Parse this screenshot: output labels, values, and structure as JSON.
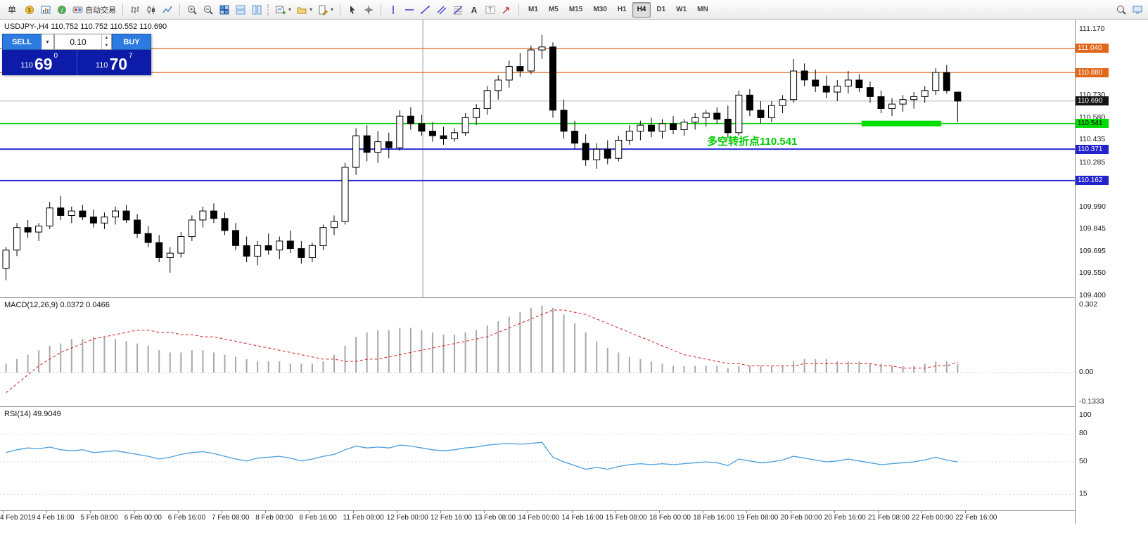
{
  "toolbar": {
    "order_label": "单",
    "autotrading_label": "自动交易",
    "icons_left": [
      "new-order-icon",
      "chart-window-icon",
      "market-watch-icon"
    ],
    "icons_chart_types": [
      "bar-chart-icon",
      "candlestick-chart-icon",
      "line-chart-icon"
    ],
    "icons_zoom": [
      "zoom-in-icon",
      "zoom-out-icon",
      "tile-windows-icon",
      "arrange-horizontal-icon",
      "arrange-vertical-icon"
    ],
    "icons_dropdown": [
      "new-chart-icon",
      "profiles-icon",
      "templates-icon"
    ],
    "icons_cursor": [
      "cursor-icon",
      "crosshair-icon"
    ],
    "icons_draw": [
      "vertical-line-icon",
      "horizontal-line-icon",
      "trendline-icon",
      "equidistant-channel-icon",
      "fibonacci-icon",
      "text-icon",
      "text-label-icon",
      "arrows-icon"
    ],
    "icons_right": [
      "search-icon",
      "workspace-icon"
    ],
    "timeframes": [
      "M1",
      "M5",
      "M15",
      "M30",
      "H1",
      "H4",
      "D1",
      "W1",
      "MN"
    ],
    "active_timeframe": "H4"
  },
  "trade_panel": {
    "sell_label": "SELL",
    "buy_label": "BUY",
    "volume": "0.10",
    "sell_small": "110",
    "sell_big": "69",
    "sell_sup": "0",
    "buy_small": "110",
    "buy_big": "70",
    "buy_sup": "7"
  },
  "price_pane": {
    "ohlc_label": "USDJPY-,H4 110.752 110.752 110.552 110.690",
    "annotation": "多空转折点110.541"
  },
  "macd_pane": {
    "label": "MACD(12,26,9) 0.0372 0.0466"
  },
  "rsi_pane": {
    "label": "RSI(14) 49.9049"
  },
  "chart_data": {
    "type": "candlestick",
    "symbol": "USDJPY-",
    "timeframe": "H4",
    "current_bid": "110.690",
    "colors": {
      "candle_up_fill": "#ffffff",
      "candle_down_fill": "#000000",
      "candle_stroke": "#000000",
      "orange_line": "#e2661a",
      "green_line": "#00cc00",
      "blue_line": "#2a2ad4",
      "bid_line": "#b0b0b0",
      "macd_bar": "#a8a8a8",
      "macd_signal": "#d02020",
      "rsi_line": "#4a9ede",
      "highlight_green": "#00dd00",
      "annotation_green": "#00cc00"
    },
    "plot": {
      "price_top": 111.231,
      "price_bottom": 109.386
    },
    "hlines": [
      {
        "price": 111.04,
        "color": "#e2661a",
        "width": 1.2
      },
      {
        "price": 110.88,
        "color": "#e2661a",
        "width": 1.2
      },
      {
        "price": 110.69,
        "color": "#b0b0b0",
        "width": 1
      },
      {
        "price": 110.541,
        "color": "#00cc00",
        "width": 1.6
      },
      {
        "price": 110.371,
        "color": "#2a2ad4",
        "width": 2
      },
      {
        "price": 110.162,
        "color": "#2a2ad4",
        "width": 2
      }
    ],
    "highlight": {
      "price": 110.541,
      "from_index": 78.5,
      "to_index": 85.8,
      "color": "#00dd00",
      "thickness": 8
    },
    "vline_index": 38.4,
    "price_axis": {
      "ticks": [
        {
          "label": "111.170",
          "value": 111.17
        },
        {
          "label": "110.730",
          "value": 110.73
        },
        {
          "label": "110.580",
          "value": 110.58
        },
        {
          "label": "110.435",
          "value": 110.435
        },
        {
          "label": "110.285",
          "value": 110.285
        },
        {
          "label": "109.990",
          "value": 109.99
        },
        {
          "label": "109.845",
          "value": 109.845
        },
        {
          "label": "109.695",
          "value": 109.695
        },
        {
          "label": "109.550",
          "value": 109.55
        },
        {
          "label": "109.400",
          "value": 109.4
        }
      ],
      "badges": [
        {
          "label": "111.040",
          "value": 111.04,
          "bg": "#e2661a",
          "fg": "#ffffff"
        },
        {
          "label": "110.880",
          "value": 110.88,
          "bg": "#e2661a",
          "fg": "#ffffff"
        },
        {
          "label": "110.690",
          "value": 110.69,
          "bg": "#141414",
          "fg": "#ffffff"
        },
        {
          "label": "110.541",
          "value": 110.541,
          "bg": "#00dd00",
          "fg": "#000000"
        },
        {
          "label": "110.371",
          "value": 110.371,
          "bg": "#2323cc",
          "fg": "#ffffff"
        },
        {
          "label": "110.162",
          "value": 110.162,
          "bg": "#2323cc",
          "fg": "#ffffff"
        }
      ]
    },
    "candles": [
      [
        109.58,
        109.72,
        109.5,
        109.7
      ],
      [
        109.7,
        109.88,
        109.66,
        109.85
      ],
      [
        109.85,
        109.9,
        109.78,
        109.82
      ],
      [
        109.82,
        109.88,
        109.76,
        109.86
      ],
      [
        109.86,
        110.02,
        109.84,
        109.98
      ],
      [
        109.98,
        110.06,
        109.9,
        109.93
      ],
      [
        109.93,
        109.99,
        109.88,
        109.96
      ],
      [
        109.96,
        110.0,
        109.9,
        109.92
      ],
      [
        109.92,
        109.97,
        109.85,
        109.88
      ],
      [
        109.88,
        109.95,
        109.84,
        109.92
      ],
      [
        109.92,
        109.99,
        109.87,
        109.96
      ],
      [
        109.96,
        110.0,
        109.88,
        109.9
      ],
      [
        109.9,
        109.94,
        109.78,
        109.81
      ],
      [
        109.81,
        109.86,
        109.72,
        109.75
      ],
      [
        109.75,
        109.8,
        109.62,
        109.65
      ],
      [
        109.65,
        109.72,
        109.55,
        109.68
      ],
      [
        109.68,
        109.82,
        109.65,
        109.79
      ],
      [
        109.79,
        109.93,
        109.76,
        109.9
      ],
      [
        109.9,
        109.99,
        109.85,
        109.96
      ],
      [
        109.96,
        110.01,
        109.88,
        109.91
      ],
      [
        109.91,
        109.95,
        109.8,
        109.83
      ],
      [
        109.83,
        109.88,
        109.7,
        109.73
      ],
      [
        109.73,
        109.79,
        109.62,
        109.66
      ],
      [
        109.66,
        109.76,
        109.6,
        109.73
      ],
      [
        109.73,
        109.81,
        109.67,
        109.7
      ],
      [
        109.7,
        109.79,
        109.64,
        109.76
      ],
      [
        109.76,
        109.83,
        109.68,
        109.71
      ],
      [
        109.71,
        109.76,
        109.61,
        109.65
      ],
      [
        109.65,
        109.75,
        109.62,
        109.73
      ],
      [
        109.73,
        109.87,
        109.7,
        109.85
      ],
      [
        109.85,
        109.93,
        109.8,
        109.89
      ],
      [
        109.89,
        110.28,
        109.87,
        110.25
      ],
      [
        110.25,
        110.51,
        110.2,
        110.46
      ],
      [
        110.46,
        110.53,
        110.29,
        110.35
      ],
      [
        110.35,
        110.49,
        110.28,
        110.42
      ],
      [
        110.42,
        110.48,
        110.31,
        110.38
      ],
      [
        110.38,
        110.63,
        110.36,
        110.59
      ],
      [
        110.59,
        110.65,
        110.5,
        110.54
      ],
      [
        110.54,
        110.6,
        110.46,
        110.49
      ],
      [
        110.49,
        110.55,
        110.42,
        110.46
      ],
      [
        110.46,
        110.52,
        110.4,
        110.44
      ],
      [
        110.44,
        110.51,
        110.42,
        110.48
      ],
      [
        110.48,
        110.61,
        110.46,
        110.58
      ],
      [
        110.58,
        110.67,
        110.53,
        110.64
      ],
      [
        110.64,
        110.79,
        110.6,
        110.76
      ],
      [
        110.76,
        110.86,
        110.7,
        110.83
      ],
      [
        110.83,
        110.96,
        110.78,
        110.92
      ],
      [
        110.92,
        111.01,
        110.85,
        110.89
      ],
      [
        110.89,
        111.06,
        110.87,
        111.03
      ],
      [
        111.03,
        111.13,
        110.97,
        111.05
      ],
      [
        111.05,
        111.08,
        110.58,
        110.63
      ],
      [
        110.63,
        110.7,
        110.44,
        110.49
      ],
      [
        110.49,
        110.56,
        110.37,
        110.41
      ],
      [
        110.41,
        110.47,
        110.26,
        110.3
      ],
      [
        110.3,
        110.41,
        110.24,
        110.37
      ],
      [
        110.37,
        110.43,
        110.27,
        110.31
      ],
      [
        110.31,
        110.46,
        110.29,
        110.43
      ],
      [
        110.43,
        110.53,
        110.4,
        110.49
      ],
      [
        110.49,
        110.56,
        110.43,
        110.53
      ],
      [
        110.53,
        110.58,
        110.45,
        110.49
      ],
      [
        110.49,
        110.57,
        110.44,
        110.54
      ],
      [
        110.54,
        110.59,
        110.47,
        110.5
      ],
      [
        110.5,
        110.57,
        110.46,
        110.55
      ],
      [
        110.55,
        110.61,
        110.5,
        110.58
      ],
      [
        110.58,
        110.63,
        110.52,
        110.61
      ],
      [
        110.61,
        110.65,
        110.54,
        110.57
      ],
      [
        110.57,
        110.66,
        110.45,
        110.48
      ],
      [
        110.48,
        110.76,
        110.46,
        110.73
      ],
      [
        110.73,
        110.77,
        110.59,
        110.63
      ],
      [
        110.63,
        110.69,
        110.54,
        110.58
      ],
      [
        110.58,
        110.69,
        110.55,
        110.66
      ],
      [
        110.66,
        110.73,
        110.61,
        110.7
      ],
      [
        110.7,
        110.97,
        110.68,
        110.89
      ],
      [
        110.89,
        110.94,
        110.79,
        110.83
      ],
      [
        110.83,
        110.9,
        110.75,
        110.79
      ],
      [
        110.79,
        110.86,
        110.71,
        110.75
      ],
      [
        110.75,
        110.83,
        110.69,
        110.79
      ],
      [
        110.79,
        110.89,
        110.74,
        110.83
      ],
      [
        110.83,
        110.87,
        110.75,
        110.78
      ],
      [
        110.78,
        110.82,
        110.68,
        110.72
      ],
      [
        110.72,
        110.76,
        110.61,
        110.64
      ],
      [
        110.64,
        110.71,
        110.59,
        110.67
      ],
      [
        110.67,
        110.73,
        110.62,
        110.7
      ],
      [
        110.7,
        110.75,
        110.64,
        110.72
      ],
      [
        110.72,
        110.79,
        110.68,
        110.76
      ],
      [
        110.76,
        110.91,
        110.73,
        110.88
      ],
      [
        110.88,
        110.93,
        110.74,
        110.76
      ],
      [
        110.75,
        110.75,
        110.55,
        110.69
      ]
    ],
    "macd": {
      "histogram": [
        0.04,
        0.06,
        0.08,
        0.1,
        0.12,
        0.13,
        0.15,
        0.15,
        0.16,
        0.16,
        0.15,
        0.14,
        0.13,
        0.12,
        0.1,
        0.09,
        0.09,
        0.1,
        0.1,
        0.09,
        0.08,
        0.07,
        0.06,
        0.05,
        0.05,
        0.05,
        0.04,
        0.04,
        0.04,
        0.05,
        0.08,
        0.12,
        0.16,
        0.18,
        0.19,
        0.19,
        0.2,
        0.2,
        0.19,
        0.18,
        0.17,
        0.17,
        0.18,
        0.19,
        0.21,
        0.23,
        0.25,
        0.27,
        0.29,
        0.3,
        0.29,
        0.26,
        0.22,
        0.18,
        0.14,
        0.11,
        0.09,
        0.07,
        0.06,
        0.05,
        0.04,
        0.03,
        0.03,
        0.03,
        0.03,
        0.03,
        0.02,
        0.03,
        0.03,
        0.03,
        0.03,
        0.03,
        0.05,
        0.06,
        0.06,
        0.06,
        0.05,
        0.05,
        0.05,
        0.04,
        0.04,
        0.03,
        0.03,
        0.03,
        0.04,
        0.05,
        0.05,
        0.037
      ],
      "signal": [
        -0.09,
        -0.05,
        -0.01,
        0.03,
        0.06,
        0.09,
        0.11,
        0.13,
        0.15,
        0.16,
        0.17,
        0.18,
        0.19,
        0.19,
        0.18,
        0.18,
        0.17,
        0.17,
        0.16,
        0.16,
        0.15,
        0.14,
        0.13,
        0.12,
        0.11,
        0.1,
        0.09,
        0.08,
        0.07,
        0.06,
        0.06,
        0.05,
        0.05,
        0.06,
        0.06,
        0.07,
        0.08,
        0.09,
        0.1,
        0.11,
        0.12,
        0.13,
        0.14,
        0.15,
        0.16,
        0.18,
        0.2,
        0.22,
        0.24,
        0.26,
        0.28,
        0.28,
        0.27,
        0.26,
        0.24,
        0.22,
        0.2,
        0.18,
        0.16,
        0.14,
        0.12,
        0.1,
        0.08,
        0.07,
        0.06,
        0.05,
        0.04,
        0.04,
        0.03,
        0.03,
        0.03,
        0.03,
        0.03,
        0.04,
        0.04,
        0.04,
        0.04,
        0.04,
        0.04,
        0.04,
        0.03,
        0.03,
        0.02,
        0.02,
        0.02,
        0.03,
        0.03,
        0.047
      ],
      "ticks": [
        {
          "label": "0.302",
          "value": 0.302
        },
        {
          "label": "0.00",
          "value": 0
        },
        {
          "label": "-0.1333",
          "value": -0.1333
        }
      ]
    },
    "rsi": {
      "values": [
        60,
        63,
        65,
        64,
        66,
        63,
        62,
        63,
        60,
        61,
        62,
        60,
        58,
        56,
        53,
        55,
        58,
        60,
        61,
        59,
        56,
        53,
        51,
        54,
        55,
        56,
        54,
        51,
        53,
        56,
        58,
        63,
        67,
        65,
        66,
        65,
        68,
        67,
        65,
        63,
        62,
        63,
        65,
        66,
        68,
        69,
        70,
        69,
        70,
        71,
        55,
        50,
        46,
        42,
        44,
        42,
        45,
        47,
        48,
        47,
        48,
        47,
        48,
        49,
        50,
        49,
        46,
        53,
        51,
        49,
        50,
        52,
        56,
        54,
        52,
        50,
        51,
        53,
        51,
        49,
        47,
        48,
        49,
        50,
        52,
        55,
        52,
        49.9
      ],
      "ticks": [
        {
          "label": "100",
          "value": 100
        },
        {
          "label": "80",
          "value": 80
        },
        {
          "label": "50",
          "value": 50
        },
        {
          "label": "15",
          "value": 15
        }
      ]
    },
    "time_labels": [
      "4 Feb 2019",
      "4 Feb 16:00",
      "5 Feb 08:00",
      "6 Feb 00:00",
      "6 Feb 16:00",
      "7 Feb 08:00",
      "8 Feb 00:00",
      "8 Feb 16:00",
      "11 Feb 08:00",
      "12 Feb 00:00",
      "12 Feb 16:00",
      "13 Feb 08:00",
      "14 Feb 00:00",
      "14 Feb 16:00",
      "15 Feb 08:00",
      "18 Feb 00:00",
      "18 Feb 16:00",
      "19 Feb 08:00",
      "20 Feb 00:00",
      "20 Feb 16:00",
      "21 Feb 08:00",
      "22 Feb 00:00",
      "22 Feb 16:00"
    ]
  }
}
